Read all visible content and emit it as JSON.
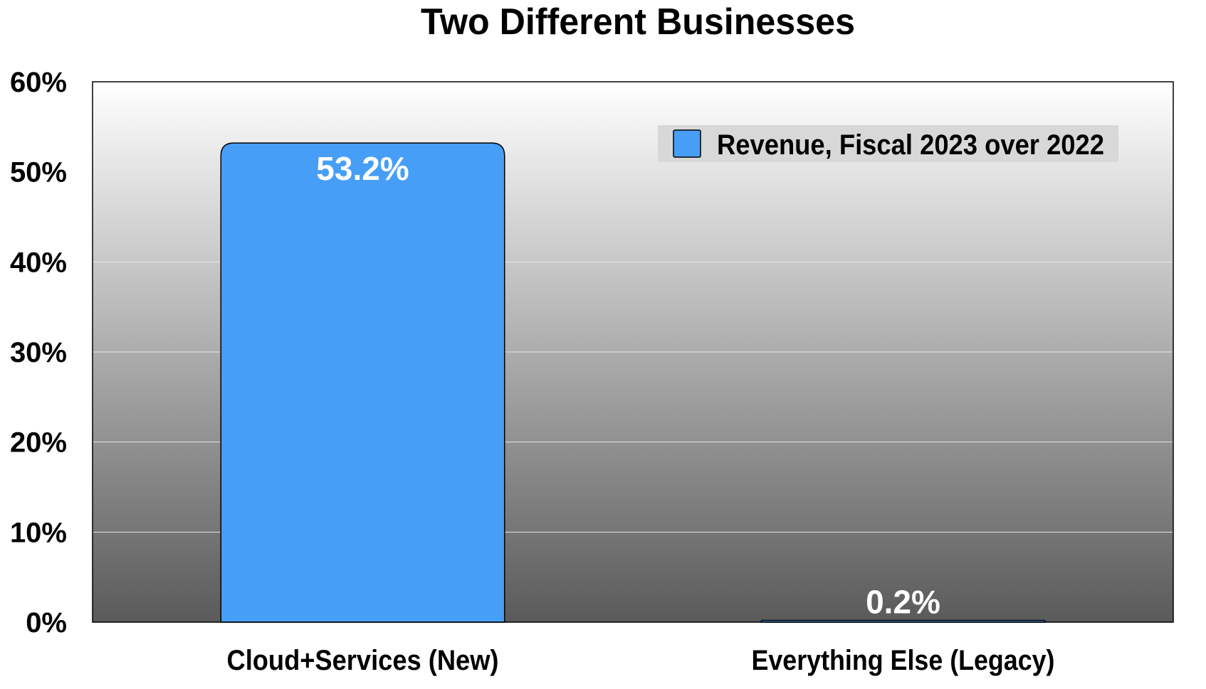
{
  "chart_data": {
    "type": "bar",
    "title": "Two Different Businesses",
    "xlabel": "",
    "ylabel": "",
    "categories": [
      "Cloud+Services (New)",
      "Everything Else (Legacy)"
    ],
    "series": [
      {
        "name": "Revenue, Fiscal 2023 over 2022",
        "values": [
          53.2,
          0.2
        ],
        "data_labels": [
          "53.2%",
          "0.2%"
        ],
        "color": "#479ef7"
      }
    ],
    "ylim": [
      0,
      60
    ],
    "yticks": [
      0,
      10,
      20,
      30,
      40,
      50,
      60
    ],
    "ytick_labels": [
      "0%",
      "10%",
      "20%",
      "30%",
      "40%",
      "50%",
      "60%"
    ],
    "grid": true,
    "legend_position": "top-right",
    "plot_background": "gradient-white-to-dark-gray"
  }
}
